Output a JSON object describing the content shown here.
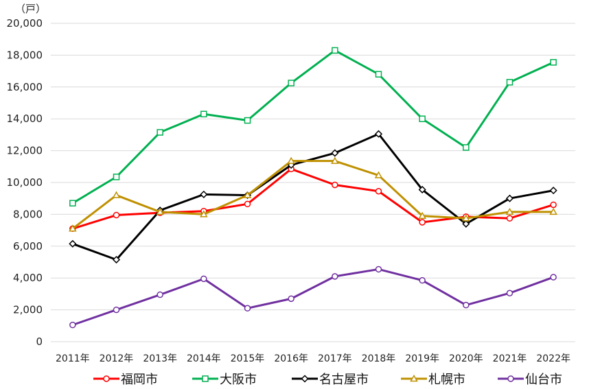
{
  "chart_data": {
    "type": "line",
    "unit_label": "（戸）",
    "categories": [
      "2011年",
      "2012年",
      "2013年",
      "2014年",
      "2015年",
      "2016年",
      "2017年",
      "2018年",
      "2019年",
      "2020年",
      "2021年",
      "2022年"
    ],
    "ylim": [
      0,
      20000
    ],
    "yticks": [
      0,
      2000,
      4000,
      6000,
      8000,
      10000,
      12000,
      14000,
      16000,
      18000,
      20000
    ],
    "ytick_labels": [
      "0",
      "2,000",
      "4,000",
      "6,000",
      "8,000",
      "10,000",
      "12,000",
      "14,000",
      "16,000",
      "18,000",
      "20,000"
    ],
    "grid": true,
    "legend_position": "bottom",
    "series": [
      {
        "name": "福岡市",
        "color": "#ff0000",
        "marker": "circle",
        "values": [
          7100,
          7950,
          8100,
          8200,
          8650,
          10850,
          9850,
          9450,
          7500,
          7850,
          7750,
          8600
        ]
      },
      {
        "name": "大阪市",
        "color": "#00b050",
        "marker": "square",
        "values": [
          8700,
          10350,
          13150,
          14300,
          13900,
          16250,
          18300,
          16800,
          14000,
          12200,
          16300,
          17550
        ]
      },
      {
        "name": "名古屋市",
        "color": "#000000",
        "marker": "diamond",
        "values": [
          6150,
          5150,
          8250,
          9250,
          9200,
          11100,
          11850,
          13050,
          9550,
          7400,
          9000,
          9500
        ]
      },
      {
        "name": "札幌市",
        "color": "#bf9000",
        "marker": "triangle",
        "values": [
          7100,
          9200,
          8150,
          8000,
          9200,
          11350,
          11350,
          10450,
          7900,
          7750,
          8150,
          8150
        ]
      },
      {
        "name": "仙台市",
        "color": "#7030a0",
        "marker": "circle",
        "values": [
          1050,
          2000,
          2950,
          3950,
          2100,
          2700,
          4100,
          4550,
          3850,
          2300,
          3050,
          4050
        ]
      }
    ]
  }
}
